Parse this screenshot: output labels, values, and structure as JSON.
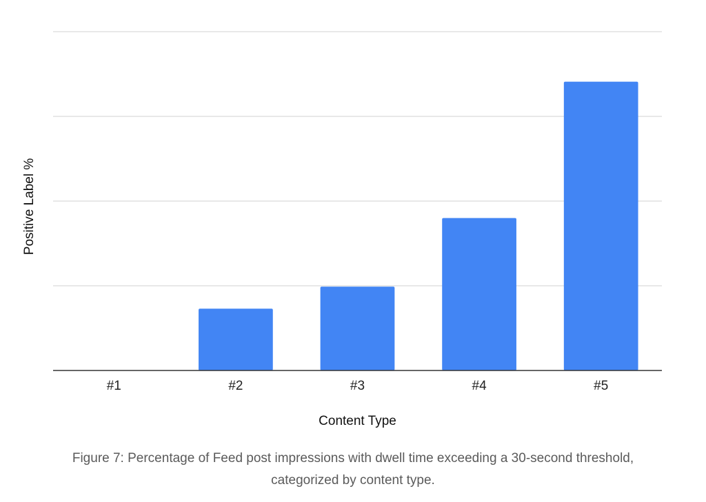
{
  "chart_data": {
    "type": "bar",
    "title": "",
    "xlabel": "Content Type",
    "ylabel": "Positive Label %",
    "categories": [
      "#1",
      "#2",
      "#3",
      "#4",
      "#5"
    ],
    "values": [
      0,
      0.73,
      0.99,
      1.8,
      3.41
    ],
    "ylim": [
      0,
      4
    ],
    "yticks": [
      0,
      1,
      2,
      3,
      4
    ],
    "y_tick_labels_shown": false,
    "grid": true,
    "legend": "none",
    "bar_color": "#4285f4"
  },
  "caption": {
    "line1": "Figure 7: Percentage of Feed post impressions with dwell time exceeding a 30-second threshold,",
    "line2": "categorized by content type."
  }
}
